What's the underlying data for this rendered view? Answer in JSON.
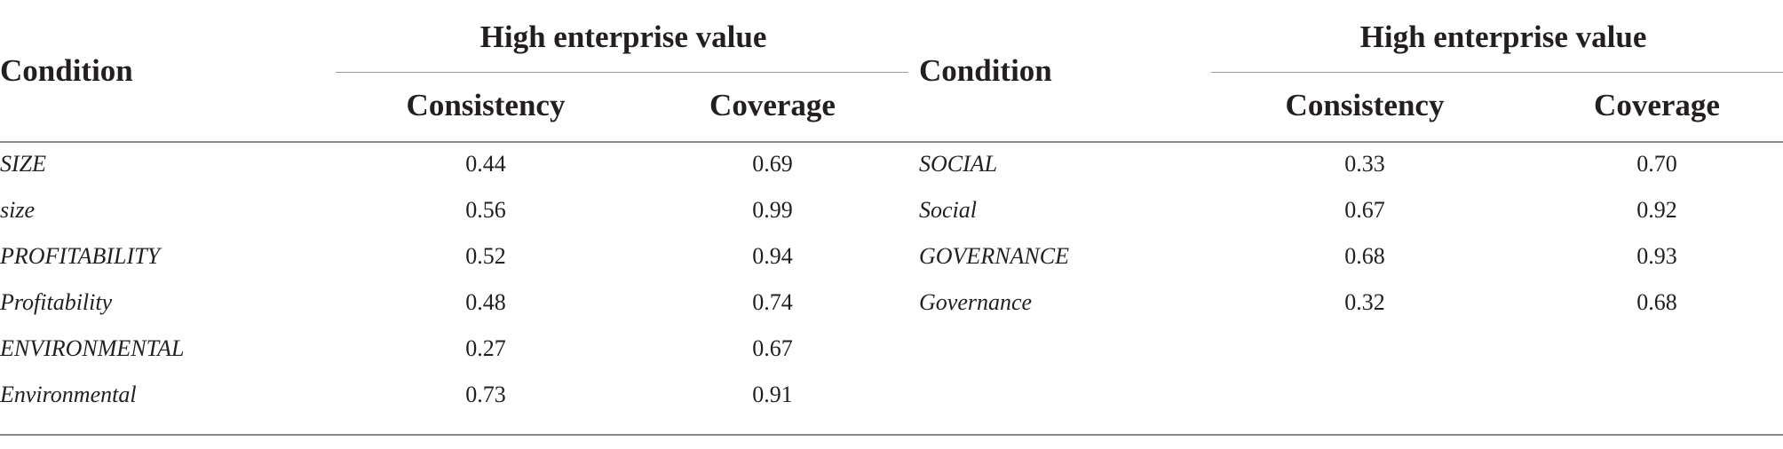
{
  "table": {
    "left": {
      "condition_header": "Condition",
      "group_header": "High enterprise value",
      "col1_header": "Consistency",
      "col2_header": "Coverage",
      "rows": [
        {
          "condition": "SIZE",
          "consistency": "0.44",
          "coverage": "0.69"
        },
        {
          "condition": "size",
          "consistency": "0.56",
          "coverage": "0.99"
        },
        {
          "condition": "PROFITABILITY",
          "consistency": "0.52",
          "coverage": "0.94"
        },
        {
          "condition": "Profitability",
          "consistency": "0.48",
          "coverage": "0.74"
        },
        {
          "condition": "ENVIRONMENTAL",
          "consistency": "0.27",
          "coverage": "0.67"
        },
        {
          "condition": "Environmental",
          "consistency": "0.73",
          "coverage": "0.91"
        }
      ]
    },
    "right": {
      "condition_header": "Condition",
      "group_header": "High enterprise value",
      "col1_header": "Consistency",
      "col2_header": "Coverage",
      "rows": [
        {
          "condition": "SOCIAL",
          "consistency": "0.33",
          "coverage": "0.70"
        },
        {
          "condition": "Social",
          "consistency": "0.67",
          "coverage": "0.92"
        },
        {
          "condition": "GOVERNANCE",
          "consistency": "0.68",
          "coverage": "0.93"
        },
        {
          "condition": "Governance",
          "consistency": "0.32",
          "coverage": "0.68"
        }
      ]
    }
  }
}
